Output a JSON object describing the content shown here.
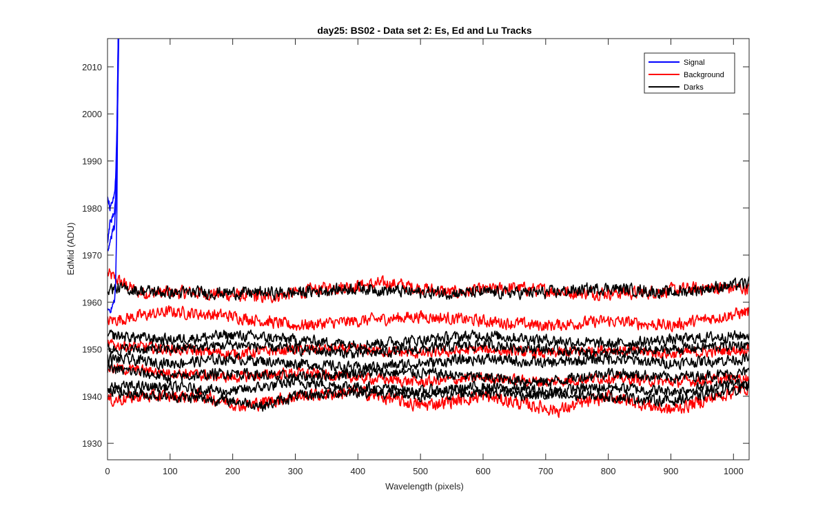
{
  "chart_data": {
    "type": "line",
    "title": "day25: BS02 - Data set 2: Es, Ed and Lu Tracks",
    "xlabel": "Wavelength (pixels)",
    "ylabel": "EdMid (ADU)",
    "xlim": [
      0,
      1025
    ],
    "ylim": [
      1926.5,
      2016
    ],
    "xticks": [
      0,
      100,
      200,
      300,
      400,
      500,
      600,
      700,
      800,
      900,
      1000
    ],
    "yticks": [
      1930,
      1940,
      1950,
      1960,
      1970,
      1980,
      1990,
      2000,
      2010
    ],
    "grid": false,
    "legend_position": "top-right",
    "legend": [
      {
        "label": "Signal",
        "color": "#0000ff"
      },
      {
        "label": "Background",
        "color": "#ff0000"
      },
      {
        "label": "Darks",
        "color": "#000000"
      }
    ],
    "series": [
      {
        "group": "Signal",
        "color": "#0000ff",
        "noise": 0.6,
        "points": [
          [
            0,
            1983
          ],
          [
            4,
            1980
          ],
          [
            8,
            1981
          ],
          [
            11,
            1983
          ],
          [
            13,
            1986
          ],
          [
            15,
            1996
          ],
          [
            17,
            2016
          ]
        ]
      },
      {
        "group": "Signal",
        "color": "#0000ff",
        "noise": 0.6,
        "points": [
          [
            0,
            1972
          ],
          [
            4,
            1977
          ],
          [
            8,
            1978
          ],
          [
            11,
            1979
          ],
          [
            13,
            1982
          ],
          [
            16,
            2000
          ],
          [
            18,
            2016
          ]
        ]
      },
      {
        "group": "Signal",
        "color": "#0000ff",
        "noise": 0.6,
        "points": [
          [
            0,
            1971
          ],
          [
            4,
            1973
          ],
          [
            8,
            1975
          ],
          [
            11,
            1976
          ],
          [
            13,
            1980
          ],
          [
            16,
            2004
          ],
          [
            17,
            2016
          ]
        ]
      },
      {
        "group": "Signal",
        "color": "#0000ff",
        "noise": 0.5,
        "points": [
          [
            0,
            1958
          ],
          [
            5,
            1958
          ],
          [
            9,
            1960
          ],
          [
            11,
            1960
          ],
          [
            13,
            1964
          ],
          [
            15,
            1980
          ],
          [
            17,
            2016
          ]
        ]
      },
      {
        "group": "Background",
        "color": "#ff0000",
        "noise": 1.2,
        "points": [
          [
            0,
            1966
          ],
          [
            50,
            1962
          ],
          [
            150,
            1962
          ],
          [
            250,
            1961
          ],
          [
            350,
            1963
          ],
          [
            450,
            1964
          ],
          [
            550,
            1962
          ],
          [
            650,
            1963
          ],
          [
            750,
            1962
          ],
          [
            850,
            1962
          ],
          [
            950,
            1963
          ],
          [
            1025,
            1963
          ]
        ]
      },
      {
        "group": "Background",
        "color": "#ff0000",
        "noise": 1.1,
        "points": [
          [
            0,
            1956
          ],
          [
            100,
            1958
          ],
          [
            200,
            1957
          ],
          [
            300,
            1955
          ],
          [
            400,
            1956
          ],
          [
            500,
            1957
          ],
          [
            600,
            1956
          ],
          [
            700,
            1955
          ],
          [
            800,
            1956
          ],
          [
            900,
            1955
          ],
          [
            1025,
            1958
          ]
        ]
      },
      {
        "group": "Background",
        "color": "#ff0000",
        "noise": 1.0,
        "points": [
          [
            0,
            1951
          ],
          [
            100,
            1950
          ],
          [
            200,
            1949
          ],
          [
            300,
            1950
          ],
          [
            400,
            1950
          ],
          [
            500,
            1949
          ],
          [
            600,
            1950
          ],
          [
            700,
            1949
          ],
          [
            800,
            1950
          ],
          [
            900,
            1949
          ],
          [
            1025,
            1950
          ]
        ]
      },
      {
        "group": "Background",
        "color": "#ff0000",
        "noise": 1.0,
        "points": [
          [
            0,
            1946
          ],
          [
            100,
            1945
          ],
          [
            200,
            1944
          ],
          [
            300,
            1945
          ],
          [
            400,
            1944
          ],
          [
            500,
            1943
          ],
          [
            600,
            1944
          ],
          [
            700,
            1943
          ],
          [
            800,
            1944
          ],
          [
            900,
            1943
          ],
          [
            1025,
            1944
          ]
        ]
      },
      {
        "group": "Background",
        "color": "#ff0000",
        "noise": 1.2,
        "points": [
          [
            0,
            1939
          ],
          [
            50,
            1940
          ],
          [
            150,
            1940
          ],
          [
            220,
            1938
          ],
          [
            300,
            1940
          ],
          [
            400,
            1941
          ],
          [
            500,
            1938
          ],
          [
            600,
            1940
          ],
          [
            720,
            1937
          ],
          [
            800,
            1940
          ],
          [
            900,
            1937
          ],
          [
            1025,
            1942
          ]
        ]
      },
      {
        "group": "Darks",
        "color": "#000000",
        "noise": 1.1,
        "points": [
          [
            0,
            1963
          ],
          [
            100,
            1962
          ],
          [
            200,
            1962
          ],
          [
            300,
            1962
          ],
          [
            400,
            1963
          ],
          [
            500,
            1962
          ],
          [
            600,
            1962
          ],
          [
            700,
            1962
          ],
          [
            800,
            1963
          ],
          [
            900,
            1962
          ],
          [
            1025,
            1964
          ]
        ]
      },
      {
        "group": "Darks",
        "color": "#000000",
        "noise": 1.0,
        "points": [
          [
            0,
            1953
          ],
          [
            100,
            1952
          ],
          [
            200,
            1953
          ],
          [
            300,
            1952
          ],
          [
            400,
            1951
          ],
          [
            500,
            1952
          ],
          [
            600,
            1953
          ],
          [
            700,
            1952
          ],
          [
            800,
            1951
          ],
          [
            900,
            1952
          ],
          [
            1025,
            1953
          ]
        ]
      },
      {
        "group": "Darks",
        "color": "#000000",
        "noise": 1.0,
        "points": [
          [
            0,
            1950
          ],
          [
            100,
            1950
          ],
          [
            200,
            1951
          ],
          [
            300,
            1950
          ],
          [
            400,
            1949
          ],
          [
            500,
            1950
          ],
          [
            600,
            1951
          ],
          [
            700,
            1950
          ],
          [
            800,
            1949
          ],
          [
            900,
            1950
          ],
          [
            1025,
            1951
          ]
        ]
      },
      {
        "group": "Darks",
        "color": "#000000",
        "noise": 1.0,
        "points": [
          [
            0,
            1948
          ],
          [
            100,
            1947
          ],
          [
            200,
            1948
          ],
          [
            300,
            1947
          ],
          [
            400,
            1946
          ],
          [
            500,
            1947
          ],
          [
            600,
            1948
          ],
          [
            700,
            1947
          ],
          [
            800,
            1948
          ],
          [
            900,
            1947
          ],
          [
            1025,
            1948
          ]
        ]
      },
      {
        "group": "Darks",
        "color": "#000000",
        "noise": 1.0,
        "points": [
          [
            0,
            1946
          ],
          [
            100,
            1944
          ],
          [
            200,
            1945
          ],
          [
            300,
            1944
          ],
          [
            400,
            1945
          ],
          [
            500,
            1945
          ],
          [
            600,
            1944
          ],
          [
            700,
            1943
          ],
          [
            800,
            1945
          ],
          [
            900,
            1944
          ],
          [
            1025,
            1945
          ]
        ]
      },
      {
        "group": "Darks",
        "color": "#000000",
        "noise": 1.0,
        "points": [
          [
            0,
            1942
          ],
          [
            100,
            1942
          ],
          [
            200,
            1941
          ],
          [
            300,
            1943
          ],
          [
            400,
            1942
          ],
          [
            500,
            1941
          ],
          [
            600,
            1942
          ],
          [
            700,
            1941
          ],
          [
            800,
            1942
          ],
          [
            900,
            1941
          ],
          [
            1025,
            1943
          ]
        ]
      },
      {
        "group": "Darks",
        "color": "#000000",
        "noise": 1.0,
        "points": [
          [
            0,
            1941
          ],
          [
            100,
            1940
          ],
          [
            200,
            1939
          ],
          [
            250,
            1938
          ],
          [
            300,
            1940
          ],
          [
            400,
            1941
          ],
          [
            500,
            1940
          ],
          [
            600,
            1941
          ],
          [
            700,
            1940
          ],
          [
            800,
            1940
          ],
          [
            900,
            1939
          ],
          [
            1025,
            1942
          ]
        ]
      }
    ]
  }
}
